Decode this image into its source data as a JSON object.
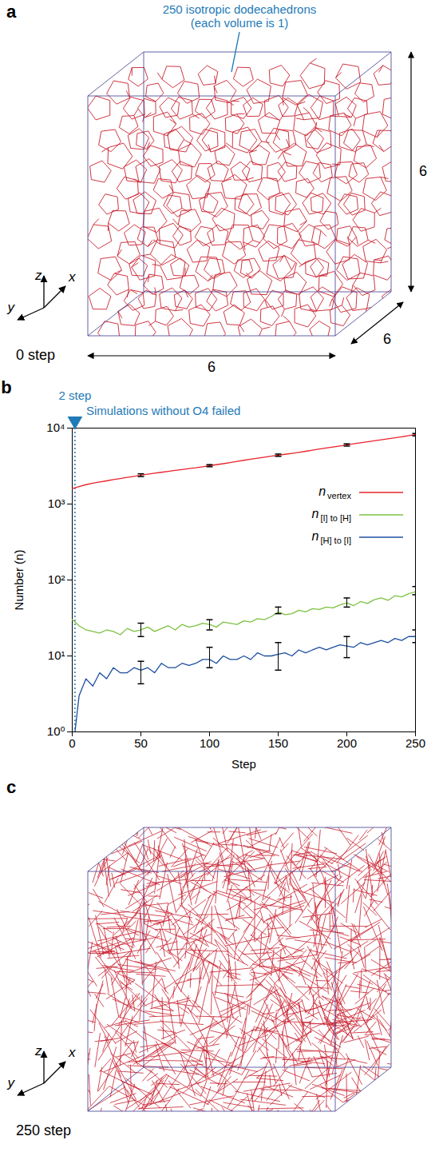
{
  "panel_a": {
    "letter": "a",
    "annotation": {
      "texts": [
        "250 isotropic dodecahedrons",
        "(each volume is 1)"
      ],
      "color": "#1f7ab8"
    },
    "edge_labels": [
      "6",
      "6",
      "6"
    ],
    "step_label": "0 step",
    "axis_labels": [
      "z",
      "x",
      "y"
    ],
    "color": "#c8202e"
  },
  "chart_data": {
    "type": "line",
    "panel_letter": "b",
    "xlabel": "Step",
    "ylabel": "Number (n)",
    "xlim": [
      0,
      250
    ],
    "xticks": [
      0,
      50,
      100,
      150,
      200,
      250
    ],
    "ylim": [
      1,
      10000
    ],
    "yticks": [
      {
        "value": 1,
        "label": "10⁰"
      },
      {
        "value": 10,
        "label": "10¹"
      },
      {
        "value": 100,
        "label": "10²"
      },
      {
        "value": 1000,
        "label": "10³"
      },
      {
        "value": 10000,
        "label": "10⁴"
      }
    ],
    "log": "y",
    "grid": false,
    "legend": "right",
    "annotation": {
      "x": 2,
      "texts": [
        "2 step",
        "Simulations without O4 failed"
      ],
      "color": "#1f7ab8"
    },
    "x": [
      0,
      2,
      5,
      10,
      15,
      20,
      25,
      30,
      35,
      40,
      45,
      50,
      55,
      60,
      65,
      70,
      75,
      80,
      85,
      90,
      95,
      100,
      105,
      110,
      115,
      120,
      125,
      130,
      135,
      140,
      145,
      150,
      155,
      160,
      165,
      170,
      175,
      180,
      185,
      190,
      195,
      200,
      205,
      210,
      215,
      220,
      225,
      230,
      235,
      240,
      245,
      250
    ],
    "series": [
      {
        "name": "n vertex",
        "color": "#e8242b",
        "values": [
          1600,
          1640,
          1700,
          1800,
          1880,
          1950,
          2020,
          2100,
          2170,
          2250,
          2320,
          2400,
          2470,
          2550,
          2620,
          2700,
          2780,
          2850,
          2930,
          3000,
          3100,
          3200,
          3300,
          3400,
          3520,
          3650,
          3770,
          3900,
          4020,
          4150,
          4270,
          4400,
          4520,
          4650,
          4800,
          4950,
          5120,
          5300,
          5470,
          5650,
          5820,
          6000,
          6200,
          6400,
          6600,
          6800,
          7020,
          7250,
          7470,
          7700,
          7950,
          8200
        ],
        "error_x": [
          50,
          100,
          150,
          200,
          250
        ],
        "error_low": [
          2300,
          3100,
          4250,
          5800,
          7900
        ],
        "error_high": [
          2500,
          3300,
          4550,
          6200,
          8500
        ]
      },
      {
        "name": "n [I] to [H]",
        "color": "#7dc242",
        "values": [
          30,
          28,
          25,
          22,
          21,
          20,
          22,
          21,
          19,
          23,
          21,
          22,
          24,
          21,
          23,
          25,
          22,
          26,
          24,
          25,
          27,
          26,
          24,
          28,
          27,
          26,
          29,
          28,
          31,
          30,
          33,
          38,
          35,
          36,
          40,
          38,
          42,
          41,
          44,
          43,
          47,
          50,
          46,
          52,
          49,
          55,
          58,
          54,
          62,
          60,
          66,
          70
        ],
        "error_x": [
          50,
          100,
          150,
          200,
          250
        ],
        "error_low": [
          18,
          22,
          36,
          44,
          64
        ],
        "error_high": [
          27,
          30,
          44,
          58,
          82
        ]
      },
      {
        "name": "n [H] to [I]",
        "color": "#1c4fa0",
        "values": [
          null,
          1,
          3,
          5,
          4,
          6,
          5,
          7,
          6,
          6,
          7,
          6.5,
          7,
          6,
          8,
          7,
          7,
          8,
          7.5,
          8,
          9,
          9,
          8,
          10,
          9,
          9,
          10,
          9,
          11,
          10,
          10,
          10.5,
          11,
          10,
          12,
          11,
          12,
          13,
          12,
          13,
          14,
          13.5,
          13,
          15,
          14,
          15,
          16,
          15,
          17,
          16,
          18,
          18
        ],
        "error_x": [
          50,
          100,
          150,
          200,
          250
        ],
        "error_low": [
          4.3,
          7,
          6.5,
          9.5,
          15
        ],
        "error_high": [
          8.5,
          13,
          15,
          18,
          22
        ]
      }
    ]
  },
  "panel_c": {
    "letter": "c",
    "step_label": "250 step",
    "axis_labels": [
      "z",
      "x",
      "y"
    ],
    "color": "#c8202e"
  }
}
